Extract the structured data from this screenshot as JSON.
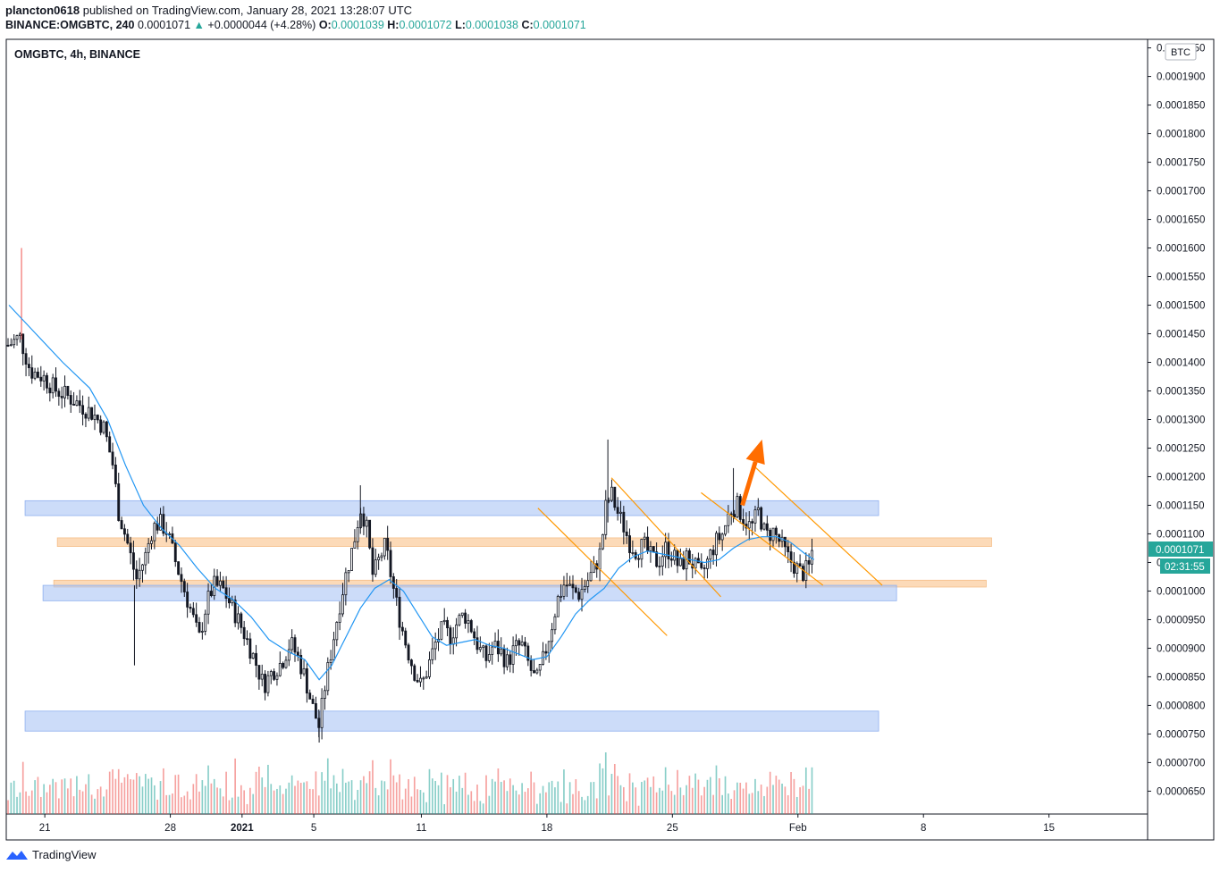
{
  "header": {
    "author": "plancton0618",
    "published": "published on TradingView.com, January 28, 2021 13:28:07 UTC",
    "symbol": "BINANCE:OMGBTC, 240",
    "last": "0.0001071",
    "change": "+0.0000044 (+4.28%)",
    "open_label": "O:",
    "open": "0.0001039",
    "high_label": "H:",
    "high": "0.0001072",
    "low_label": "L:",
    "low": "0.0001038",
    "close_label": "C:",
    "close": "0.0001071"
  },
  "footer": {
    "brand": "TradingView"
  },
  "colors": {
    "up": "#26a69a",
    "down": "#ef5350",
    "candle_body": "#131722",
    "ma": "#2196f3",
    "support_zone": "#aac4f5",
    "orange_zone": "#fbd3ab",
    "channel": "#ff9800",
    "arrow": "#ff6d00"
  },
  "chart_data": {
    "type": "candlestick",
    "title": "OMGBTC, 4h, BINANCE",
    "y_unit": "BTC",
    "ylim": [
      6.1e-05,
      0.0001965
    ],
    "y_ticks": [
      "0.0001950",
      "0.0001900",
      "0.0001850",
      "0.0001800",
      "0.0001750",
      "0.0001700",
      "0.0001650",
      "0.0001600",
      "0.0001550",
      "0.0001500",
      "0.0001450",
      "0.0001400",
      "0.0001350",
      "0.0001300",
      "0.0001250",
      "0.0001200",
      "0.0001150",
      "0.0001100",
      "0.0001050",
      "0.0001000",
      "0.0000950",
      "0.0000900",
      "0.0000850",
      "0.0000800",
      "0.0000750",
      "0.0000700",
      "0.0000650"
    ],
    "x_ticks": [
      {
        "label": "21",
        "day": 21
      },
      {
        "label": "28",
        "day": 28
      },
      {
        "label": "2021",
        "day": 32
      },
      {
        "label": "5",
        "day": 36
      },
      {
        "label": "11",
        "day": 42
      },
      {
        "label": "18",
        "day": 49
      },
      {
        "label": "25",
        "day": 56
      },
      {
        "label": "Feb",
        "day": 63
      },
      {
        "label": "8",
        "day": 70
      },
      {
        "label": "15",
        "day": 77
      }
    ],
    "x_domain_days": [
      18.85,
      82.5
    ],
    "last_price_label": "0.0001071",
    "countdown_label": "02:31:55",
    "last_price": 0.0001071,
    "price_path": [
      [
        19.0,
        0.000143
      ],
      [
        19.6,
        0.0001445
      ],
      [
        20.2,
        0.0001385
      ],
      [
        20.9,
        0.0001375
      ],
      [
        21.6,
        0.0001352
      ],
      [
        22.3,
        0.000134
      ],
      [
        23.0,
        0.0001325
      ],
      [
        23.7,
        0.000131
      ],
      [
        24.3,
        0.0001285
      ],
      [
        24.8,
        0.000122
      ],
      [
        25.1,
        0.000114
      ],
      [
        25.6,
        0.0001085
      ],
      [
        26.1,
        0.000102
      ],
      [
        26.6,
        0.000106
      ],
      [
        27.0,
        0.000111
      ],
      [
        27.4,
        0.000112
      ],
      [
        27.8,
        0.0001105
      ],
      [
        28.3,
        0.000105
      ],
      [
        28.8,
        0.0001
      ],
      [
        29.2,
        9.6e-05
      ],
      [
        29.6,
        9.15e-05
      ],
      [
        30.0,
        9.75e-05
      ],
      [
        30.4,
        0.000101
      ],
      [
        30.9,
        0.0001005
      ],
      [
        31.3,
        9.8e-05
      ],
      [
        31.7,
        9.55e-05
      ],
      [
        32.2,
        9.2e-05
      ],
      [
        32.7,
        8.8e-05
      ],
      [
        33.2,
        8.35e-05
      ],
      [
        33.7,
        8.6e-05
      ],
      [
        34.2,
        8.75e-05
      ],
      [
        34.7,
        9.1e-05
      ],
      [
        35.1,
        8.85e-05
      ],
      [
        35.5,
        8.5e-05
      ],
      [
        35.9,
        8e-05
      ],
      [
        36.3,
        7.62e-05
      ],
      [
        36.6,
        8.3e-05
      ],
      [
        37.0,
        9e-05
      ],
      [
        37.4,
        9.7e-05
      ],
      [
        37.8,
        0.000103
      ],
      [
        38.2,
        0.000108
      ],
      [
        38.6,
        0.0001145
      ],
      [
        38.9,
        0.000112
      ],
      [
        39.3,
        0.0001025
      ],
      [
        39.7,
        0.000106
      ],
      [
        40.0,
        0.000108
      ],
      [
        40.4,
        0.000101
      ],
      [
        40.8,
        9.5e-05
      ],
      [
        41.2,
        9e-05
      ],
      [
        41.6,
        8.6e-05
      ],
      [
        42.0,
        8.32e-05
      ],
      [
        42.4,
        8.7e-05
      ],
      [
        42.8,
        9.1e-05
      ],
      [
        43.2,
        9.35e-05
      ],
      [
        43.6,
        9.2e-05
      ],
      [
        44.0,
        9.45e-05
      ],
      [
        44.4,
        9.6e-05
      ],
      [
        44.8,
        9.35e-05
      ],
      [
        45.2,
        9e-05
      ],
      [
        45.6,
        8.8e-05
      ],
      [
        46.0,
        9.05e-05
      ],
      [
        46.4,
        8.95e-05
      ],
      [
        46.8,
        8.75e-05
      ],
      [
        47.2,
        9e-05
      ],
      [
        47.6,
        9.05e-05
      ],
      [
        48.0,
        8.7e-05
      ],
      [
        48.4,
        8.4e-05
      ],
      [
        48.8,
        8.8e-05
      ],
      [
        49.2,
        9.3e-05
      ],
      [
        49.6,
        9.85e-05
      ],
      [
        50.0,
        0.0001015
      ],
      [
        50.4,
        0.0001
      ],
      [
        50.8,
        9.95e-05
      ],
      [
        51.2,
        0.0001015
      ],
      [
        51.6,
        0.0001035
      ],
      [
        52.0,
        0.000107
      ],
      [
        52.3,
        0.000115
      ],
      [
        52.6,
        0.000117
      ],
      [
        52.9,
        0.000114
      ],
      [
        53.2,
        0.000112
      ],
      [
        53.6,
        0.0001085
      ],
      [
        54.0,
        0.000107
      ],
      [
        54.4,
        0.000108
      ],
      [
        54.8,
        0.000106
      ],
      [
        55.2,
        0.000105
      ],
      [
        55.6,
        0.0001075
      ],
      [
        56.0,
        0.0001065
      ],
      [
        56.4,
        0.000104
      ],
      [
        56.8,
        0.000106
      ],
      [
        57.2,
        0.0001045
      ],
      [
        57.6,
        0.0001025
      ],
      [
        58.0,
        0.0001055
      ],
      [
        58.4,
        0.0001085
      ],
      [
        58.8,
        0.00011
      ],
      [
        59.2,
        0.000114
      ],
      [
        59.6,
        0.000115
      ],
      [
        60.0,
        0.0001125
      ],
      [
        60.4,
        0.000111
      ],
      [
        60.8,
        0.000114
      ],
      [
        61.2,
        0.0001095
      ],
      [
        61.6,
        0.0001105
      ],
      [
        62.0,
        0.0001085
      ],
      [
        62.4,
        0.000106
      ],
      [
        62.8,
        0.0001045
      ],
      [
        63.2,
        0.000103
      ],
      [
        63.6,
        0.000104
      ],
      [
        63.9,
        0.0001071
      ]
    ],
    "ma_path": [
      [
        19.0,
        0.00015
      ],
      [
        20.5,
        0.000145
      ],
      [
        22.0,
        0.00014
      ],
      [
        23.5,
        0.0001355
      ],
      [
        24.5,
        0.00013
      ],
      [
        25.5,
        0.000122
      ],
      [
        26.5,
        0.000115
      ],
      [
        27.5,
        0.000111
      ],
      [
        28.5,
        0.000108
      ],
      [
        29.5,
        0.000104
      ],
      [
        30.5,
        0.0001005
      ],
      [
        31.5,
        9.85e-05
      ],
      [
        32.5,
        9.55e-05
      ],
      [
        33.5,
        9.15e-05
      ],
      [
        34.5,
        8.95e-05
      ],
      [
        35.5,
        8.8e-05
      ],
      [
        36.3,
        8.45e-05
      ],
      [
        37.0,
        8.7e-05
      ],
      [
        37.8,
        9.2e-05
      ],
      [
        38.6,
        9.7e-05
      ],
      [
        39.4,
        0.0001005
      ],
      [
        40.2,
        0.000102
      ],
      [
        41.0,
        0.0001
      ],
      [
        41.8,
        9.6e-05
      ],
      [
        42.6,
        9.2e-05
      ],
      [
        43.4,
        9.05e-05
      ],
      [
        44.2,
        9.1e-05
      ],
      [
        45.0,
        9.15e-05
      ],
      [
        45.8,
        9.05e-05
      ],
      [
        46.6,
        9e-05
      ],
      [
        47.4,
        8.9e-05
      ],
      [
        48.2,
        8.8e-05
      ],
      [
        49.0,
        8.85e-05
      ],
      [
        49.8,
        9.2e-05
      ],
      [
        50.6,
        9.6e-05
      ],
      [
        51.4,
        9.85e-05
      ],
      [
        52.2,
        0.0001005
      ],
      [
        53.0,
        0.000104
      ],
      [
        53.8,
        0.000106
      ],
      [
        54.6,
        0.000107
      ],
      [
        55.4,
        0.0001065
      ],
      [
        56.2,
        0.000106
      ],
      [
        57.0,
        0.0001055
      ],
      [
        57.8,
        0.000105
      ],
      [
        58.6,
        0.0001055
      ],
      [
        59.4,
        0.0001075
      ],
      [
        60.2,
        0.000109
      ],
      [
        61.0,
        0.0001095
      ],
      [
        61.8,
        0.0001095
      ],
      [
        62.6,
        0.0001085
      ],
      [
        63.4,
        0.0001065
      ],
      [
        63.9,
        0.0001055
      ]
    ],
    "spike_wicks": [
      {
        "day": 19.7,
        "high": 0.00016,
        "low": 0.000144
      },
      {
        "day": 26.0,
        "high": 0.000101,
        "low": 8.7e-05
      },
      {
        "day": 52.4,
        "high": 0.0001265,
        "low": 0.000112
      },
      {
        "day": 59.4,
        "high": 0.0001215,
        "low": 0.000112
      },
      {
        "day": 38.6,
        "high": 0.0001185,
        "low": 0.00011
      },
      {
        "day": 36.3,
        "high": 7.9e-05,
        "low": 7.35e-05
      }
    ],
    "zones": [
      {
        "kind": "support",
        "from_day": 19.9,
        "to_day": 67.5,
        "top": 0.0001158,
        "bottom": 0.0001132
      },
      {
        "kind": "resistance",
        "from_day": 21.7,
        "to_day": 73.8,
        "top": 0.0001093,
        "bottom": 0.0001078
      },
      {
        "kind": "resistance",
        "from_day": 21.5,
        "to_day": 73.5,
        "top": 0.0001019,
        "bottom": 0.0001007
      },
      {
        "kind": "support",
        "from_day": 20.9,
        "to_day": 68.5,
        "top": 0.000101,
        "bottom": 9.83e-05
      },
      {
        "kind": "support",
        "from_day": 19.9,
        "to_day": 67.5,
        "top": 7.9e-05,
        "bottom": 7.55e-05
      }
    ],
    "channel_lines": [
      {
        "from": [
          48.5,
          0.0001145
        ],
        "to": [
          55.7,
          9.22e-05
        ]
      },
      {
        "from": [
          52.6,
          0.0001198
        ],
        "to": [
          58.7,
          9.9e-05
        ]
      },
      {
        "from": [
          57.6,
          0.0001172
        ],
        "to": [
          64.4,
          0.000101
        ]
      },
      {
        "from": [
          60.5,
          0.000122
        ],
        "to": [
          67.7,
          0.000101
        ]
      }
    ],
    "arrow": {
      "from": [
        59.9,
        0.000115
      ],
      "to": [
        61.0,
        0.0001265
      ]
    },
    "volume_ylim": [
      0,
      1
    ]
  }
}
